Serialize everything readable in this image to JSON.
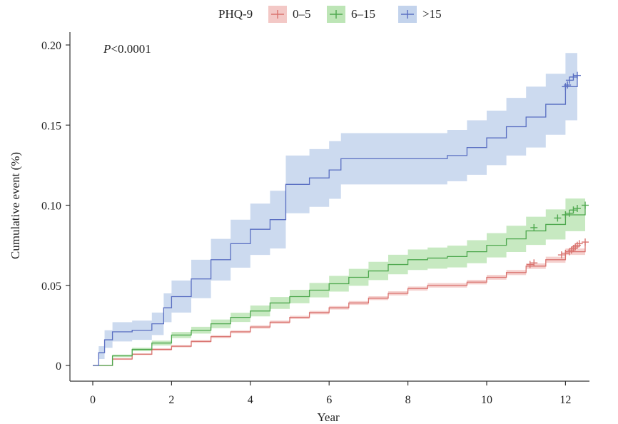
{
  "chart_data": {
    "type": "line",
    "subtype": "cumulative-incidence",
    "annotation": {
      "prefix": "P",
      "text": "<0.0001"
    },
    "xlabel": "Year",
    "ylabel": "Cumulative event (%)",
    "xlim": [
      0,
      12.5
    ],
    "ylim": [
      0,
      0.2
    ],
    "xticks": [
      0,
      2,
      4,
      6,
      8,
      10,
      12
    ],
    "yticks": [
      0,
      0.05,
      0.1,
      0.15,
      0.2
    ],
    "ytick_labels": [
      "0",
      "0.05",
      "0.10",
      "0.15",
      "0.20"
    ],
    "grid": false,
    "legend": {
      "title": "PHQ-9",
      "position": "top"
    },
    "series": [
      {
        "name": "0–5",
        "color": "#d9726e",
        "band_color": "#f3c8c6",
        "x": [
          0,
          0.5,
          1,
          1.5,
          2,
          2.5,
          3,
          3.5,
          4,
          4.5,
          5,
          5.5,
          6,
          6.5,
          7,
          7.5,
          8,
          8.5,
          9,
          9.5,
          10,
          10.5,
          11,
          11.5,
          12,
          12.5
        ],
        "y": [
          0,
          0.004,
          0.007,
          0.01,
          0.012,
          0.015,
          0.018,
          0.021,
          0.024,
          0.027,
          0.03,
          0.033,
          0.036,
          0.039,
          0.042,
          0.045,
          0.048,
          0.05,
          0.05,
          0.052,
          0.055,
          0.058,
          0.062,
          0.066,
          0.071,
          0.077
        ],
        "lower": [
          0,
          0.0035,
          0.0065,
          0.0093,
          0.0113,
          0.0142,
          0.0171,
          0.0201,
          0.023,
          0.026,
          0.029,
          0.0319,
          0.0349,
          0.0378,
          0.0408,
          0.0437,
          0.0467,
          0.0486,
          0.0486,
          0.0506,
          0.0535,
          0.0564,
          0.0603,
          0.0641,
          0.069,
          0.0745
        ],
        "upper": [
          0,
          0.0045,
          0.0075,
          0.0107,
          0.0127,
          0.0158,
          0.0189,
          0.0219,
          0.025,
          0.028,
          0.031,
          0.0341,
          0.0371,
          0.0402,
          0.0432,
          0.0463,
          0.0493,
          0.0514,
          0.0514,
          0.0534,
          0.0565,
          0.0596,
          0.0637,
          0.0679,
          0.073,
          0.0795
        ],
        "censor_x": [
          11.1,
          11.2,
          11.9,
          12.0,
          12.1,
          12.15,
          12.2,
          12.25,
          12.3,
          12.35,
          12.5
        ],
        "censor_y": [
          0.063,
          0.064,
          0.069,
          0.07,
          0.071,
          0.072,
          0.073,
          0.074,
          0.075,
          0.076,
          0.077
        ]
      },
      {
        "name": "6–15",
        "color": "#4ea84e",
        "band_color": "#bde5b6",
        "x": [
          0,
          0.5,
          1,
          1.5,
          2,
          2.5,
          3,
          3.5,
          4,
          4.5,
          5,
          5.5,
          6,
          6.5,
          7,
          7.5,
          8,
          8.5,
          9,
          9.5,
          10,
          10.5,
          11,
          11.5,
          12,
          12.5
        ],
        "y": [
          0,
          0.006,
          0.01,
          0.014,
          0.019,
          0.022,
          0.026,
          0.03,
          0.034,
          0.039,
          0.043,
          0.047,
          0.051,
          0.055,
          0.059,
          0.063,
          0.066,
          0.067,
          0.068,
          0.071,
          0.075,
          0.079,
          0.084,
          0.088,
          0.094,
          0.1
        ],
        "lower": [
          0,
          0.0052,
          0.0089,
          0.0125,
          0.0171,
          0.0199,
          0.0233,
          0.0271,
          0.0306,
          0.0353,
          0.0388,
          0.0425,
          0.0461,
          0.0497,
          0.0533,
          0.0569,
          0.0596,
          0.0604,
          0.0612,
          0.0638,
          0.0674,
          0.0708,
          0.0752,
          0.0786,
          0.0838,
          0.0888
        ],
        "upper": [
          0,
          0.0068,
          0.0111,
          0.0155,
          0.0209,
          0.0241,
          0.0287,
          0.0329,
          0.0374,
          0.0427,
          0.0472,
          0.0515,
          0.0559,
          0.0603,
          0.0647,
          0.0691,
          0.0724,
          0.0736,
          0.0748,
          0.0782,
          0.0826,
          0.0872,
          0.0928,
          0.0974,
          0.1042,
          0.1112
        ],
        "censor_x": [
          11.2,
          11.8,
          12.0,
          12.1,
          12.2,
          12.3,
          12.5
        ],
        "censor_y": [
          0.086,
          0.092,
          0.094,
          0.095,
          0.097,
          0.098,
          0.1
        ]
      },
      {
        "name": ">15",
        "color": "#5a6fc2",
        "band_color": "#c3d3ec",
        "x": [
          0,
          0.15,
          0.3,
          0.5,
          1,
          1.5,
          1.8,
          2,
          2.5,
          3,
          3.5,
          4,
          4.5,
          4.9,
          5.5,
          6,
          6.3,
          7,
          8,
          8.7,
          9,
          9.5,
          10,
          10.5,
          11,
          11.5,
          12,
          12.3
        ],
        "y": [
          0,
          0.008,
          0.016,
          0.021,
          0.022,
          0.026,
          0.036,
          0.043,
          0.054,
          0.066,
          0.076,
          0.085,
          0.091,
          0.113,
          0.117,
          0.122,
          0.129,
          0.129,
          0.129,
          0.129,
          0.131,
          0.136,
          0.142,
          0.149,
          0.155,
          0.163,
          0.174,
          0.181
        ],
        "lower": [
          0,
          0.004,
          0.011,
          0.015,
          0.016,
          0.019,
          0.027,
          0.033,
          0.042,
          0.053,
          0.061,
          0.069,
          0.073,
          0.095,
          0.099,
          0.104,
          0.113,
          0.113,
          0.113,
          0.113,
          0.115,
          0.119,
          0.125,
          0.131,
          0.136,
          0.144,
          0.153,
          0.162
        ],
        "upper": [
          0,
          0.012,
          0.022,
          0.027,
          0.028,
          0.033,
          0.045,
          0.053,
          0.066,
          0.079,
          0.091,
          0.101,
          0.109,
          0.131,
          0.135,
          0.14,
          0.145,
          0.145,
          0.145,
          0.145,
          0.147,
          0.153,
          0.159,
          0.167,
          0.174,
          0.182,
          0.195,
          0.2
        ],
        "censor_x": [
          12.0,
          12.05,
          12.1,
          12.2,
          12.3
        ],
        "censor_y": [
          0.174,
          0.175,
          0.178,
          0.18,
          0.181
        ]
      }
    ]
  }
}
